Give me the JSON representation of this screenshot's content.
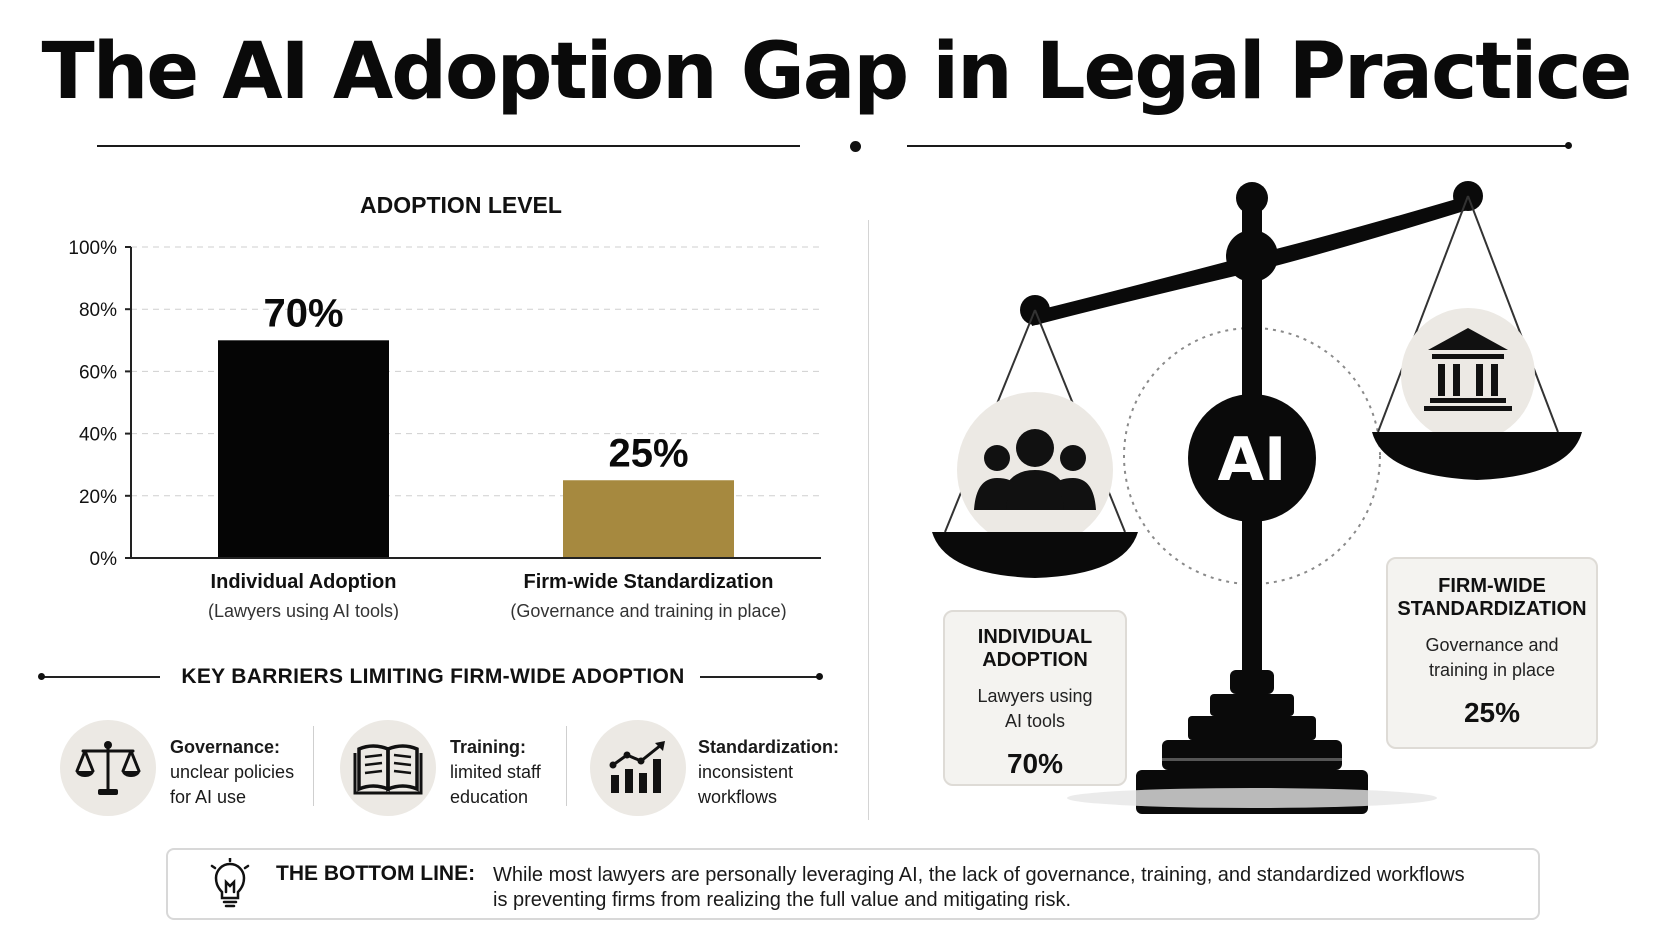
{
  "title": "The AI Adoption Gap in Legal Practice",
  "chart_data": {
    "type": "bar",
    "title": "ADOPTION LEVEL",
    "categories": [
      "Individual Adoption",
      "Firm-wide Standardization"
    ],
    "category_subtitles": [
      "(Lawyers using AI tools)",
      "(Governance and training in place)"
    ],
    "values": [
      70,
      25
    ],
    "value_labels": [
      "70%",
      "25%"
    ],
    "bar_colors": [
      "#050505",
      "#a6893f"
    ],
    "ylim": [
      0,
      100
    ],
    "yticks": [
      0,
      20,
      40,
      60,
      80,
      100
    ],
    "ytick_labels": [
      "0%",
      "20%",
      "40%",
      "60%",
      "80%",
      "100%"
    ],
    "grid": true
  },
  "barriers": {
    "title": "KEY BARRIERS LIMITING FIRM-WIDE ADOPTION",
    "items": [
      {
        "heading": "Governance:",
        "line1": "unclear policies",
        "line2": "for AI use",
        "icon": "scales-icon"
      },
      {
        "heading": "Training:",
        "line1": "limited staff",
        "line2": "education",
        "icon": "book-icon"
      },
      {
        "heading": "Standardization:",
        "line1": "inconsistent",
        "line2": "workflows",
        "icon": "growth-chart-icon"
      }
    ]
  },
  "scale": {
    "center_label": "AI",
    "left_card": {
      "title_line1": "INDIVIDUAL",
      "title_line2": "ADOPTION",
      "sub_line1": "Lawyers using",
      "sub_line2": "AI tools",
      "value": "70%"
    },
    "right_card": {
      "title_line1": "FIRM-WIDE",
      "title_line2": "STANDARDIZATION",
      "sub_line1": "Governance and",
      "sub_line2": "training in place",
      "value": "25%"
    }
  },
  "bottom_line": {
    "label": "THE BOTTOM LINE:",
    "line1": "While most lawyers are personally leveraging AI, the lack of governance, training, and standardized workflows",
    "line2": "is preventing firms from realizing the full value and mitigating risk."
  },
  "colors": {
    "ink": "#050505",
    "gold": "#a6893f",
    "soft_circle": "#ece9e4",
    "card_bg": "#f4f3f0"
  }
}
